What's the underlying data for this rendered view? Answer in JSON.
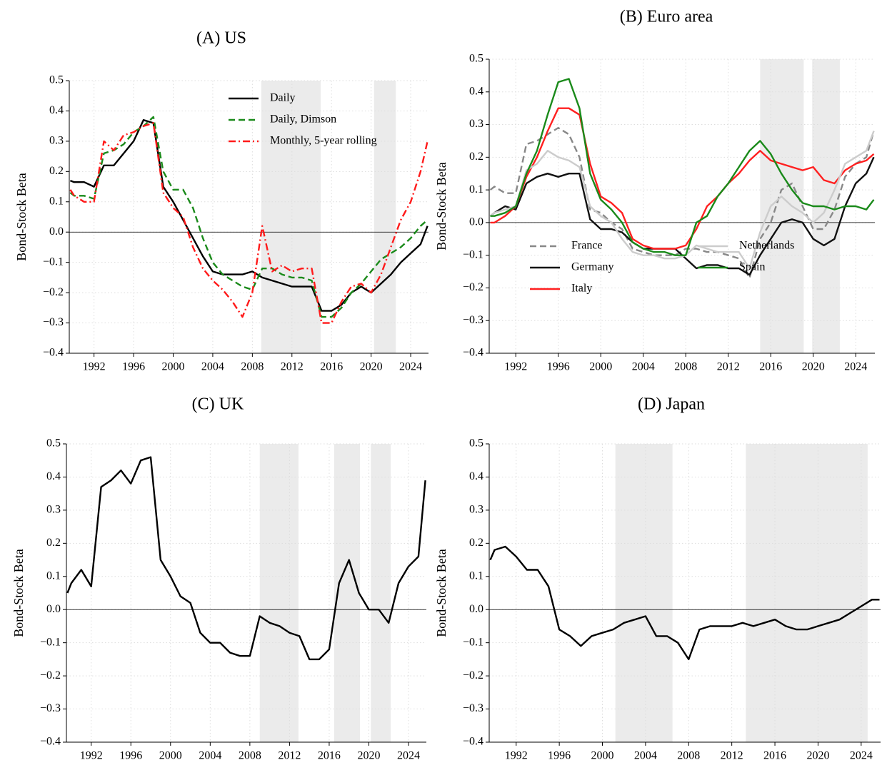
{
  "chart_data": [
    {
      "type": "line",
      "title": "(A) US",
      "ylabel": "Bond-Stock Beta",
      "x": [
        1989.6,
        1990,
        1991,
        1992,
        1993,
        1994,
        1995,
        1996,
        1997,
        1998,
        1999,
        2000,
        2001,
        2002,
        2003,
        2004,
        2005,
        2006,
        2007,
        2008,
        2009,
        2010,
        2011,
        2012,
        2013,
        2014,
        2015,
        2016,
        2017,
        2018,
        2019,
        2020,
        2021,
        2022,
        2023,
        2024,
        2025,
        2025.7
      ],
      "series": [
        {
          "name": "Daily",
          "color": "#000000",
          "style": "solid",
          "values": [
            0.17,
            0.165,
            0.165,
            0.15,
            0.22,
            0.22,
            0.26,
            0.3,
            0.37,
            0.36,
            0.15,
            0.1,
            0.04,
            -0.02,
            -0.08,
            -0.13,
            -0.14,
            -0.14,
            -0.14,
            -0.13,
            -0.15,
            -0.16,
            -0.17,
            -0.18,
            -0.18,
            -0.18,
            -0.26,
            -0.26,
            -0.24,
            -0.2,
            -0.18,
            -0.2,
            -0.17,
            -0.14,
            -0.1,
            -0.07,
            -0.04,
            0.02
          ]
        },
        {
          "name": "Daily, Dimson",
          "color": "#1a8a1a",
          "style": "dashed",
          "values": [
            0.13,
            0.12,
            0.12,
            0.11,
            0.26,
            0.27,
            0.29,
            0.33,
            0.35,
            0.38,
            0.2,
            0.14,
            0.14,
            0.08,
            -0.02,
            -0.1,
            -0.14,
            -0.16,
            -0.18,
            -0.19,
            -0.12,
            -0.12,
            -0.14,
            -0.15,
            -0.15,
            -0.16,
            -0.28,
            -0.28,
            -0.25,
            -0.2,
            -0.17,
            -0.13,
            -0.09,
            -0.07,
            -0.05,
            -0.02,
            0.02,
            0.04
          ]
        },
        {
          "name": "Monthly, 5-year rolling",
          "color": "#ff1a1a",
          "style": "dashdot",
          "values": [
            0.14,
            0.12,
            0.1,
            0.1,
            0.3,
            0.27,
            0.32,
            0.33,
            0.35,
            0.36,
            0.13,
            0.08,
            0.05,
            -0.05,
            -0.12,
            -0.16,
            -0.19,
            -0.23,
            -0.28,
            -0.2,
            0.02,
            -0.13,
            -0.11,
            -0.13,
            -0.12,
            -0.12,
            -0.3,
            -0.3,
            -0.23,
            -0.18,
            -0.17,
            -0.2,
            -0.14,
            -0.05,
            0.04,
            0.1,
            0.2,
            0.3
          ]
        }
      ],
      "shaded": [
        [
          2008.9,
          2014.9
        ],
        [
          2020.3,
          2022.5
        ]
      ],
      "hline": 0,
      "xlim": [
        1989.5,
        2025.8
      ],
      "xticks": [
        1992,
        1996,
        2000,
        2004,
        2008,
        2012,
        2016,
        2020,
        2024
      ],
      "ylim": [
        -0.4,
        0.5
      ],
      "yticks": [
        {
          "value": -0.4,
          "label": "−0.4"
        },
        {
          "value": -0.3,
          "label": "−0.3"
        },
        {
          "value": -0.2,
          "label": "−0.2"
        },
        {
          "value": -0.1,
          "label": "−0.1"
        },
        {
          "value": 0,
          "label": "0.0"
        },
        0.1,
        0.2,
        0.3,
        0.4,
        0.5
      ],
      "grid": true,
      "legend": "upper right",
      "legend_columns": 1
    },
    {
      "type": "line",
      "title": "(B) Euro area",
      "ylabel": "Bond-Stock Beta",
      "x": [
        1989.6,
        1990,
        1991,
        1992,
        1993,
        1994,
        1995,
        1996,
        1997,
        1998,
        1999,
        2000,
        2001,
        2002,
        2003,
        2004,
        2005,
        2006,
        2007,
        2008,
        2009,
        2010,
        2011,
        2012,
        2013,
        2014,
        2015,
        2016,
        2017,
        2018,
        2019,
        2020,
        2021,
        2022,
        2023,
        2024,
        2025,
        2025.7
      ],
      "series": [
        {
          "name": "France",
          "color": "#888888",
          "style": "dashed",
          "values": [
            0.1,
            0.11,
            0.09,
            0.09,
            0.24,
            0.25,
            0.27,
            0.29,
            0.27,
            0.2,
            0.04,
            0.03,
            0.0,
            -0.02,
            -0.08,
            -0.09,
            -0.1,
            -0.1,
            -0.1,
            -0.08,
            -0.08,
            -0.09,
            -0.09,
            -0.1,
            -0.11,
            -0.17,
            -0.05,
            0.0,
            0.1,
            0.12,
            0.05,
            -0.02,
            -0.02,
            0.04,
            0.14,
            0.18,
            0.2,
            0.28
          ]
        },
        {
          "name": "Germany",
          "color": "#111111",
          "style": "solid",
          "values": [
            0.02,
            0.03,
            0.05,
            0.04,
            0.12,
            0.14,
            0.15,
            0.14,
            0.15,
            0.15,
            0.01,
            -0.02,
            -0.02,
            -0.03,
            -0.06,
            -0.08,
            -0.08,
            -0.08,
            -0.08,
            -0.11,
            -0.14,
            -0.13,
            -0.13,
            -0.14,
            -0.14,
            -0.16,
            -0.1,
            -0.05,
            0.0,
            0.01,
            0.0,
            -0.05,
            -0.07,
            -0.05,
            0.05,
            0.12,
            0.15,
            0.2
          ]
        },
        {
          "name": "Italy",
          "color": "#ff2020",
          "style": "solid",
          "values": [
            0.0,
            0.0,
            0.02,
            0.05,
            0.14,
            0.2,
            0.28,
            0.35,
            0.35,
            0.33,
            0.18,
            0.08,
            0.06,
            0.03,
            -0.05,
            -0.07,
            -0.08,
            -0.08,
            -0.08,
            -0.07,
            -0.02,
            0.05,
            0.08,
            0.12,
            0.15,
            0.19,
            0.22,
            0.19,
            0.18,
            0.17,
            0.16,
            0.17,
            0.13,
            0.12,
            0.16,
            0.18,
            0.19,
            0.21
          ]
        },
        {
          "name": "Netherlands",
          "color": "#cccccc",
          "style": "solid",
          "values": [
            0.02,
            0.03,
            0.04,
            0.05,
            0.16,
            0.18,
            0.22,
            0.2,
            0.19,
            0.17,
            0.05,
            0.02,
            0.0,
            -0.05,
            -0.09,
            -0.1,
            -0.1,
            -0.11,
            -0.11,
            -0.1,
            -0.07,
            -0.08,
            -0.09,
            -0.09,
            -0.09,
            -0.14,
            -0.03,
            0.05,
            0.08,
            0.05,
            0.03,
            0.0,
            0.03,
            0.1,
            0.18,
            0.2,
            0.22,
            0.28
          ]
        },
        {
          "name": "Spain",
          "color": "#1a8a1a",
          "style": "solid",
          "values": [
            0.02,
            0.02,
            0.03,
            0.05,
            0.15,
            0.22,
            0.33,
            0.43,
            0.44,
            0.35,
            0.15,
            0.07,
            0.04,
            0.0,
            -0.06,
            -0.08,
            -0.09,
            -0.09,
            -0.1,
            -0.1,
            0.0,
            0.02,
            0.08,
            0.12,
            0.17,
            0.22,
            0.25,
            0.21,
            0.15,
            0.1,
            0.06,
            0.05,
            0.05,
            0.04,
            0.05,
            0.05,
            0.04,
            0.07
          ]
        }
      ],
      "shaded": [
        [
          2015.0,
          2019.1
        ],
        [
          2019.9,
          2022.5
        ]
      ],
      "hline": 0,
      "xlim": [
        1989.5,
        2025.8
      ],
      "xticks": [
        1992,
        1996,
        2000,
        2004,
        2008,
        2012,
        2016,
        2020,
        2024
      ],
      "ylim": [
        -0.4,
        0.5
      ],
      "yticks": [
        {
          "value": -0.4,
          "label": "−0.4"
        },
        {
          "value": -0.3,
          "label": "−0.3"
        },
        {
          "value": -0.2,
          "label": "−0.2"
        },
        {
          "value": -0.1,
          "label": "−0.1"
        },
        {
          "value": 0,
          "label": "0.0"
        },
        0.1,
        0.2,
        0.3,
        0.4,
        0.5
      ],
      "grid": true,
      "legend": "lower left",
      "legend_columns": 2
    },
    {
      "type": "line",
      "title": "(C) UK",
      "ylabel": "Bond-Stock Beta",
      "x": [
        1989.6,
        1990,
        1991,
        1992,
        1993,
        1994,
        1995,
        1996,
        1997,
        1998,
        1999,
        2000,
        2001,
        2002,
        2003,
        2004,
        2005,
        2006,
        2007,
        2008,
        2009,
        2010,
        2011,
        2012,
        2013,
        2014,
        2015,
        2016,
        2017,
        2018,
        2019,
        2020,
        2021,
        2022,
        2023,
        2024,
        2025,
        2025.7
      ],
      "series": [
        {
          "color": "#000000",
          "style": "solid",
          "values": [
            0.05,
            0.08,
            0.12,
            0.07,
            0.37,
            0.39,
            0.42,
            0.38,
            0.45,
            0.46,
            0.15,
            0.1,
            0.04,
            0.02,
            -0.07,
            -0.1,
            -0.1,
            -0.13,
            -0.14,
            -0.14,
            -0.02,
            -0.04,
            -0.05,
            -0.07,
            -0.08,
            -0.15,
            -0.15,
            -0.12,
            0.08,
            0.15,
            0.05,
            0.0,
            0.0,
            -0.04,
            0.08,
            0.13,
            0.16,
            0.39
          ]
        }
      ],
      "shaded": [
        [
          2009.0,
          2012.9
        ],
        [
          2016.5,
          2019.1
        ],
        [
          2020.2,
          2022.2
        ]
      ],
      "hline": 0,
      "xlim": [
        1989.5,
        2025.8
      ],
      "xticks": [
        1992,
        1996,
        2000,
        2004,
        2008,
        2012,
        2016,
        2020,
        2024
      ],
      "ylim": [
        -0.4,
        0.5
      ],
      "yticks": [
        {
          "value": -0.4,
          "label": "−0.4"
        },
        {
          "value": -0.3,
          "label": "−0.3"
        },
        {
          "value": -0.2,
          "label": "−0.2"
        },
        {
          "value": -0.1,
          "label": "−0.1"
        },
        {
          "value": 0,
          "label": "0.0"
        },
        0.1,
        0.2,
        0.3,
        0.4,
        0.5
      ],
      "grid": true
    },
    {
      "type": "line",
      "title": "(D) Japan",
      "ylabel": "Bond-Stock Beta",
      "x": [
        1989.6,
        1990,
        1991,
        1992,
        1993,
        1994,
        1995,
        1996,
        1997,
        1998,
        1999,
        2000,
        2001,
        2002,
        2003,
        2004,
        2005,
        2006,
        2007,
        2008,
        2009,
        2010,
        2011,
        2012,
        2013,
        2014,
        2015,
        2016,
        2017,
        2018,
        2019,
        2020,
        2021,
        2022,
        2023,
        2024,
        2025,
        2025.7
      ],
      "series": [
        {
          "color": "#000000",
          "style": "solid",
          "values": [
            0.15,
            0.18,
            0.19,
            0.16,
            0.12,
            0.12,
            0.07,
            -0.06,
            -0.08,
            -0.11,
            -0.08,
            -0.07,
            -0.06,
            -0.04,
            -0.03,
            -0.02,
            -0.08,
            -0.08,
            -0.1,
            -0.15,
            -0.06,
            -0.05,
            -0.05,
            -0.05,
            -0.04,
            -0.05,
            -0.04,
            -0.03,
            -0.05,
            -0.06,
            -0.06,
            -0.05,
            -0.04,
            -0.03,
            -0.01,
            0.01,
            0.03,
            0.03
          ]
        }
      ],
      "shaded": [
        [
          2001.2,
          2006.5
        ],
        [
          2013.3,
          2024.6
        ]
      ],
      "hline": 0,
      "xlim": [
        1989.5,
        2025.8
      ],
      "xticks": [
        1992,
        1996,
        2000,
        2004,
        2008,
        2012,
        2016,
        2020,
        2024
      ],
      "ylim": [
        -0.4,
        0.5
      ],
      "yticks": [
        {
          "value": -0.4,
          "label": "−0.4"
        },
        {
          "value": -0.3,
          "label": "−0.3"
        },
        {
          "value": -0.2,
          "label": "−0.2"
        },
        {
          "value": -0.1,
          "label": "−0.1"
        },
        {
          "value": 0,
          "label": "0.0"
        },
        0.1,
        0.2,
        0.3,
        0.4,
        0.5
      ],
      "grid": true
    }
  ]
}
